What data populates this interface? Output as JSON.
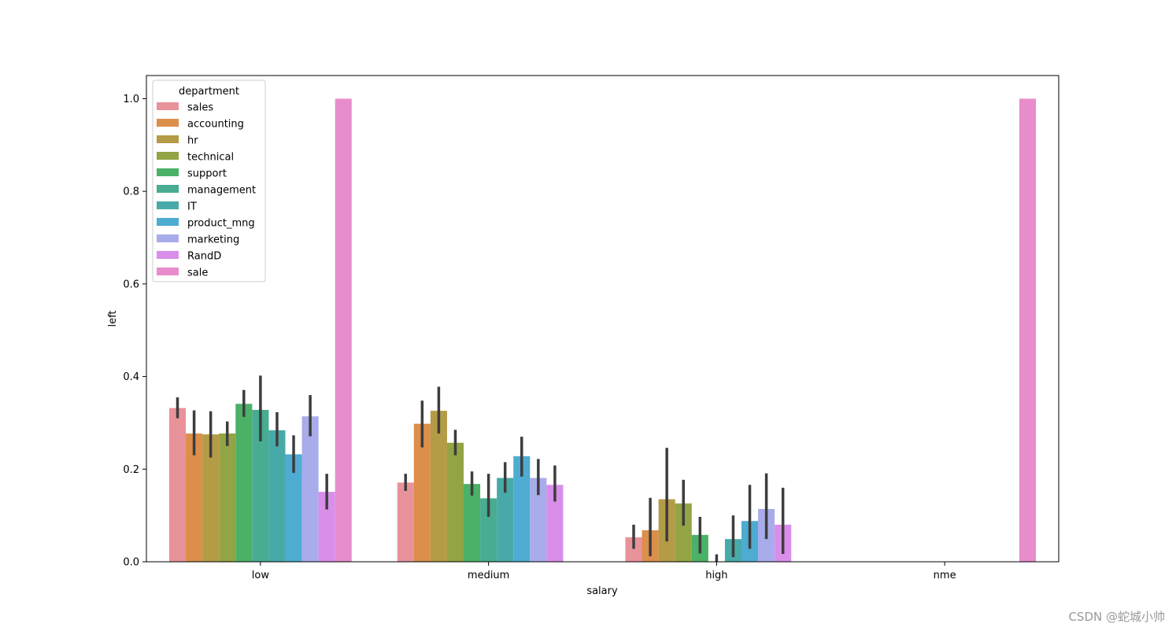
{
  "chart_data": {
    "type": "bar",
    "xlabel": "salary",
    "ylabel": "left",
    "ylim": [
      0,
      1.05
    ],
    "yticks": [
      0.0,
      0.2,
      0.4,
      0.6,
      0.8,
      1.0
    ],
    "ytick_labels": [
      "0.0",
      "0.2",
      "0.4",
      "0.6",
      "0.8",
      "1.0"
    ],
    "grid": false,
    "legend": {
      "title": "department",
      "placement": "top-left"
    },
    "categories": [
      "low",
      "medium",
      "high",
      "nme"
    ],
    "series": [
      {
        "name": "sales",
        "color": "#e8929a",
        "values": [
          0.332,
          0.171,
          0.053,
          null
        ],
        "ci_low": [
          0.31,
          0.153,
          0.028,
          null
        ],
        "ci_high": [
          0.355,
          0.19,
          0.08,
          null
        ]
      },
      {
        "name": "accounting",
        "color": "#dc8e4b",
        "values": [
          0.277,
          0.298,
          0.068,
          null
        ],
        "ci_low": [
          0.23,
          0.247,
          0.012,
          null
        ],
        "ci_high": [
          0.327,
          0.348,
          0.138,
          null
        ]
      },
      {
        "name": "hr",
        "color": "#b49b45",
        "values": [
          0.275,
          0.326,
          0.135,
          null
        ],
        "ci_low": [
          0.225,
          0.277,
          0.044,
          null
        ],
        "ci_high": [
          0.325,
          0.378,
          0.246,
          null
        ]
      },
      {
        "name": "technical",
        "color": "#92a443",
        "values": [
          0.277,
          0.257,
          0.126,
          null
        ],
        "ci_low": [
          0.25,
          0.23,
          0.078,
          null
        ],
        "ci_high": [
          0.303,
          0.285,
          0.177,
          null
        ]
      },
      {
        "name": "support",
        "color": "#4ab167",
        "values": [
          0.341,
          0.168,
          0.058,
          null
        ],
        "ci_low": [
          0.313,
          0.143,
          0.018,
          null
        ],
        "ci_high": [
          0.371,
          0.195,
          0.097,
          null
        ]
      },
      {
        "name": "management",
        "color": "#47ac91",
        "values": [
          0.328,
          0.137,
          0.0,
          null
        ],
        "ci_low": [
          0.26,
          0.097,
          0.0,
          null
        ],
        "ci_high": [
          0.402,
          0.19,
          0.016,
          null
        ]
      },
      {
        "name": "IT",
        "color": "#48aaa8",
        "values": [
          0.284,
          0.181,
          0.049,
          null
        ],
        "ci_low": [
          0.249,
          0.149,
          0.01,
          null
        ],
        "ci_high": [
          0.323,
          0.215,
          0.1,
          null
        ]
      },
      {
        "name": "product_mng",
        "color": "#4eabd1",
        "values": [
          0.232,
          0.228,
          0.088,
          null
        ],
        "ci_low": [
          0.192,
          0.184,
          0.028,
          null
        ],
        "ci_high": [
          0.273,
          0.27,
          0.166,
          null
        ]
      },
      {
        "name": "marketing",
        "color": "#a9acea",
        "values": [
          0.314,
          0.181,
          0.114,
          null
        ],
        "ci_low": [
          0.271,
          0.144,
          0.049,
          null
        ],
        "ci_high": [
          0.36,
          0.222,
          0.191,
          null
        ]
      },
      {
        "name": "RandD",
        "color": "#d98eea",
        "values": [
          0.151,
          0.166,
          0.08,
          null
        ],
        "ci_low": [
          0.113,
          0.13,
          0.017,
          null
        ],
        "ci_high": [
          0.19,
          0.208,
          0.16,
          null
        ]
      },
      {
        "name": "sale",
        "color": "#e88dcb",
        "values": [
          1.0,
          null,
          null,
          1.0
        ],
        "ci_low": [
          null,
          null,
          null,
          null
        ],
        "ci_high": [
          null,
          null,
          null,
          null
        ]
      }
    ]
  },
  "watermark": "CSDN @蛇城小帅"
}
